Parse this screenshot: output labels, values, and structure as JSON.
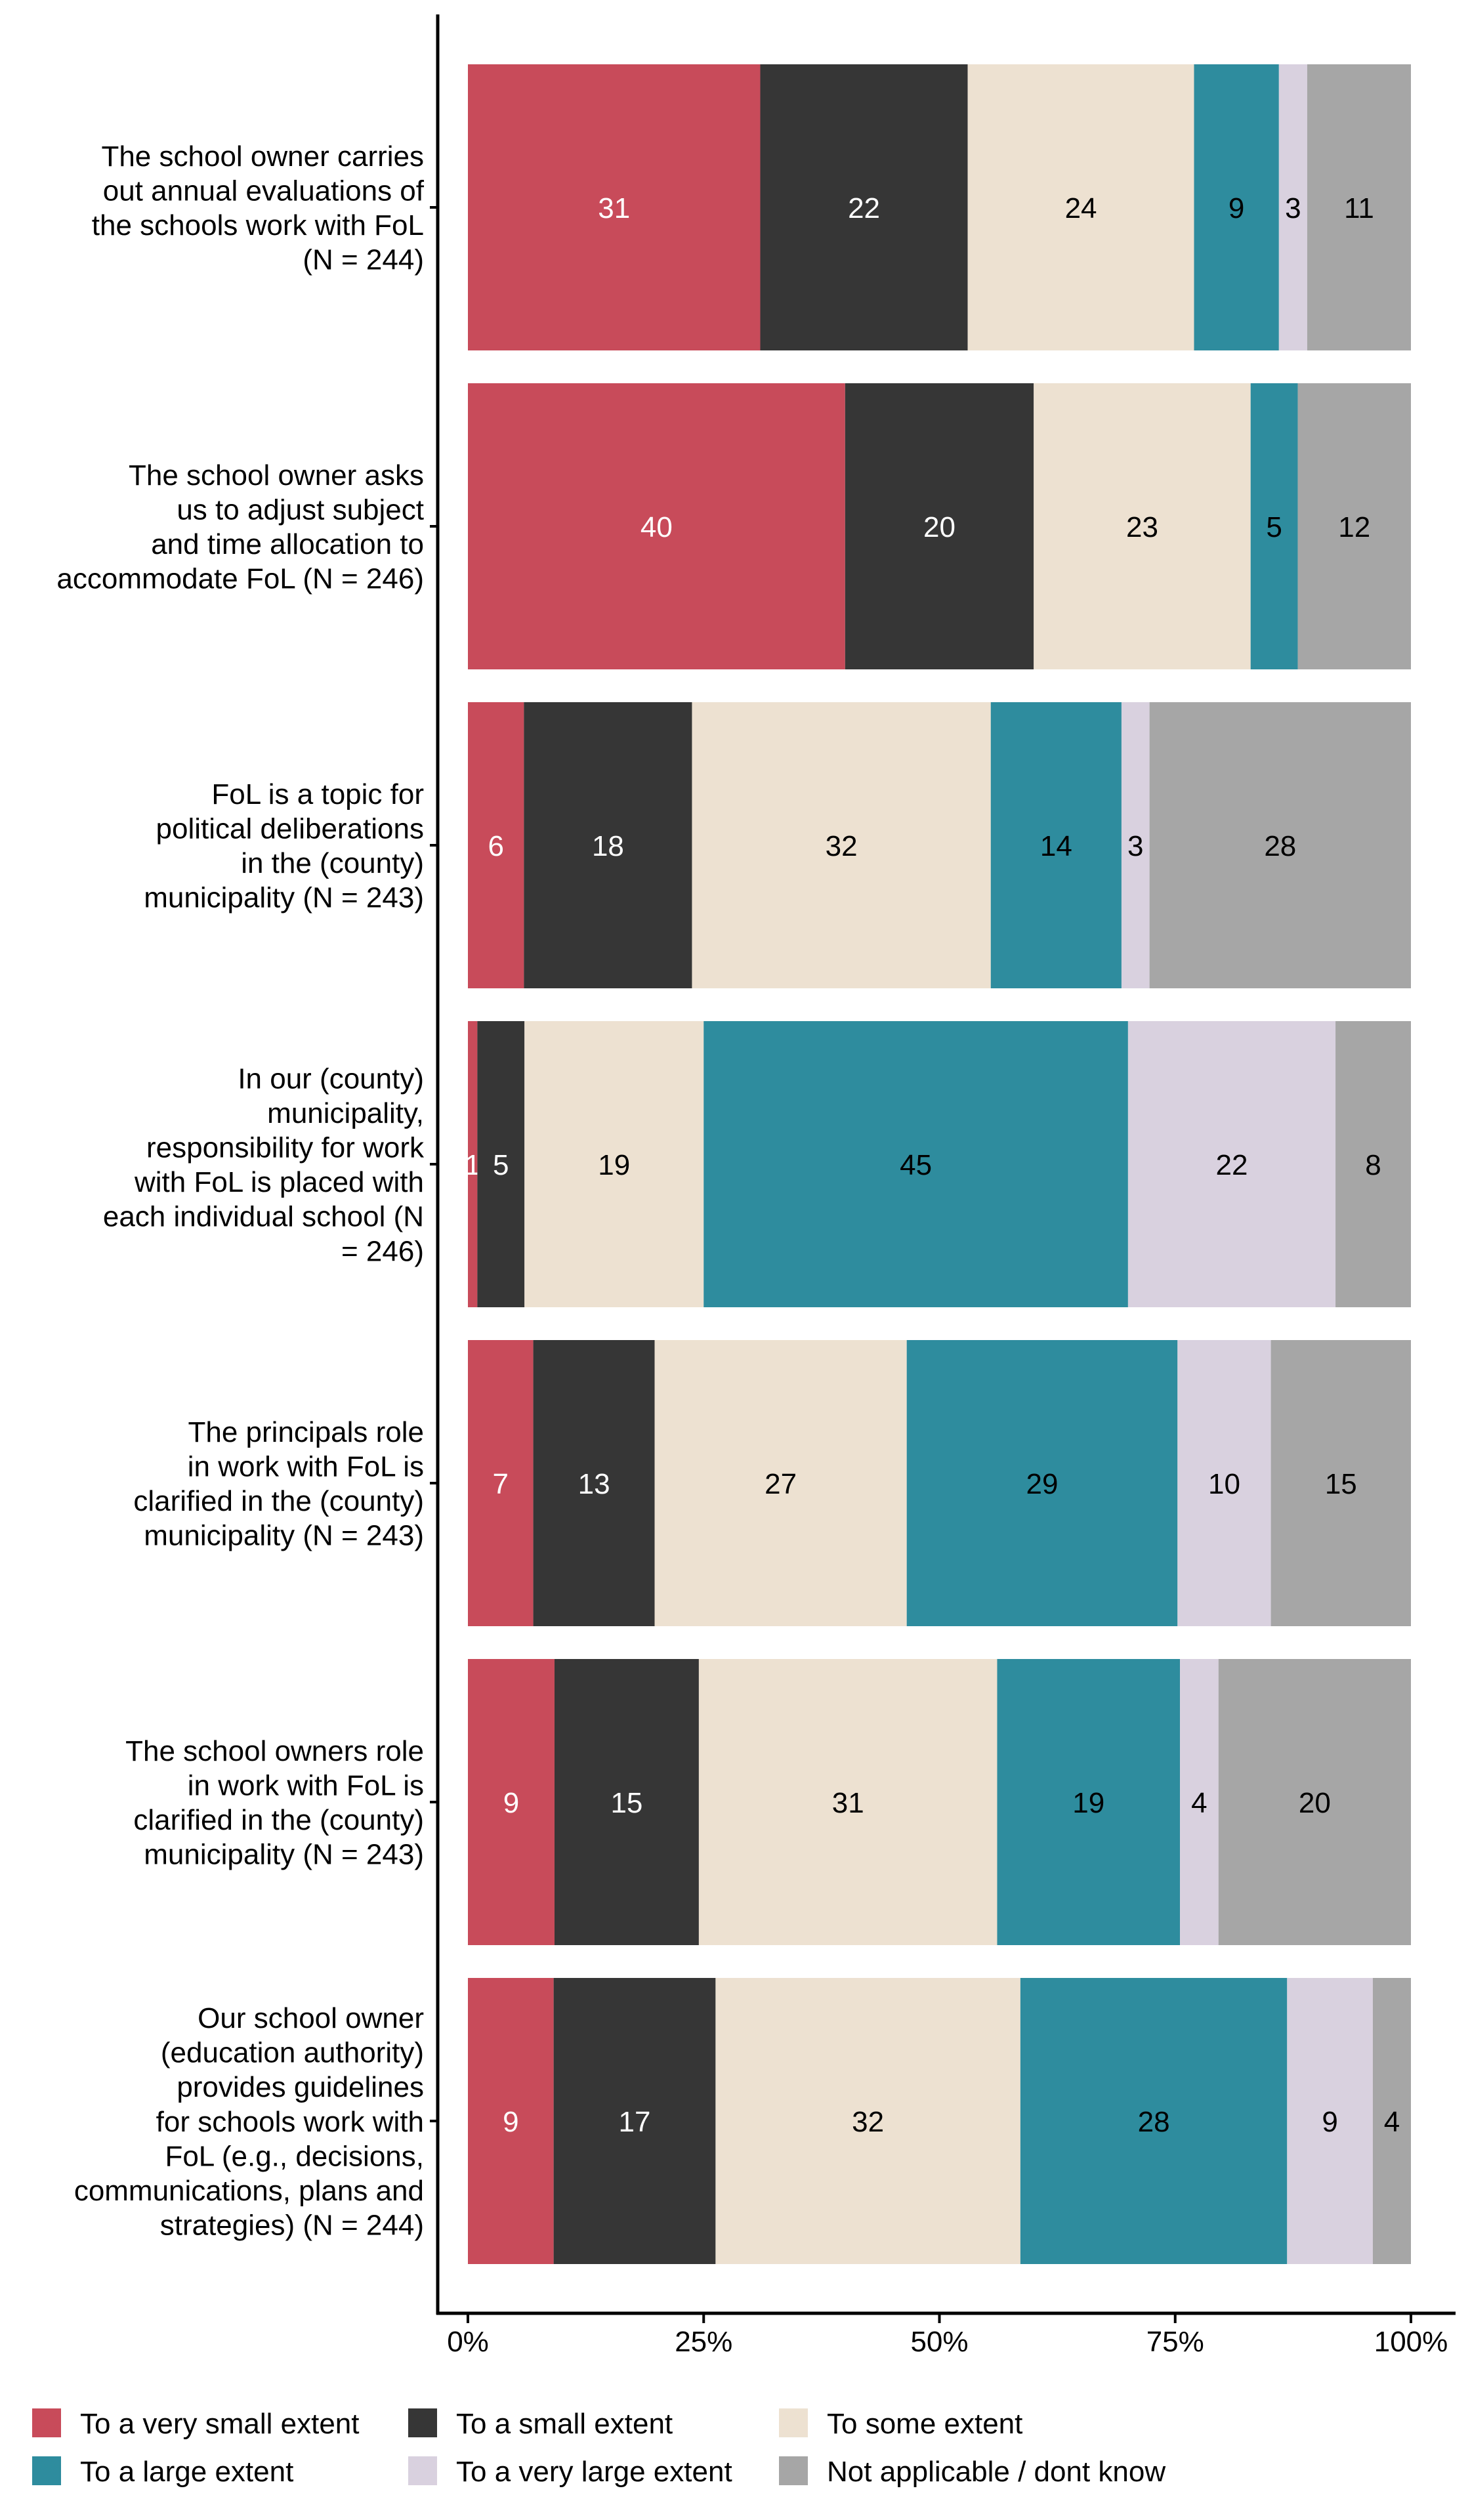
{
  "chart_data": {
    "type": "bar",
    "orientation": "horizontal",
    "stacked": true,
    "title": "",
    "xlabel": "",
    "ylabel": "",
    "xlim": [
      0,
      100
    ],
    "x_ticks": [
      "0%",
      "25%",
      "50%",
      "75%",
      "100%"
    ],
    "legend_position": "bottom",
    "categories": [
      [
        "The school owner carries",
        "out annual evaluations of",
        "the schools work with FoL",
        "(N = 244)"
      ],
      [
        "The school owner asks",
        "us to adjust subject",
        "and time allocation to",
        "accommodate FoL (N = 246)"
      ],
      [
        "FoL is a topic for",
        "political deliberations",
        "in the (county)",
        "municipality (N = 243)"
      ],
      [
        "In our (county)",
        "municipality,",
        "responsibility for work",
        "with FoL is placed with",
        "each individual school (N",
        "= 246)"
      ],
      [
        "The principals role",
        "in work with FoL is",
        "clarified in the (county)",
        "municipality (N = 243)"
      ],
      [
        "The school owners role",
        "in work with FoL is",
        "clarified in the (county)",
        "municipality (N = 243)"
      ],
      [
        "Our school owner",
        "(education authority)",
        "provides guidelines",
        "for schools work with",
        "FoL (e.g., decisions,",
        "communications, plans and",
        "strategies) (N = 244)"
      ]
    ],
    "series": [
      {
        "name": "To a very small extent",
        "color": "#C84B5A",
        "label_color": "#FFFFFF",
        "values": [
          31,
          40,
          6,
          1,
          7,
          9,
          9
        ]
      },
      {
        "name": "To a small extent",
        "color": "#363636",
        "label_color": "#FFFFFF",
        "values": [
          22,
          20,
          18,
          5,
          13,
          15,
          17
        ]
      },
      {
        "name": "To some extent",
        "color": "#EDE1D1",
        "label_color": "#000000",
        "values": [
          24,
          23,
          32,
          19,
          27,
          31,
          32
        ]
      },
      {
        "name": "To a large extent",
        "color": "#2E8C9E",
        "label_color": "#000000",
        "values": [
          9,
          5,
          14,
          45,
          29,
          19,
          28
        ]
      },
      {
        "name": "To a very large extent",
        "color": "#D9D1DF",
        "label_color": "#000000",
        "values": [
          3,
          0,
          3,
          22,
          10,
          4,
          9
        ]
      },
      {
        "name": "Not applicable / dont know",
        "color": "#A6A6A6",
        "label_color": "#000000",
        "values": [
          11,
          12,
          28,
          8,
          15,
          20,
          4
        ]
      }
    ]
  }
}
